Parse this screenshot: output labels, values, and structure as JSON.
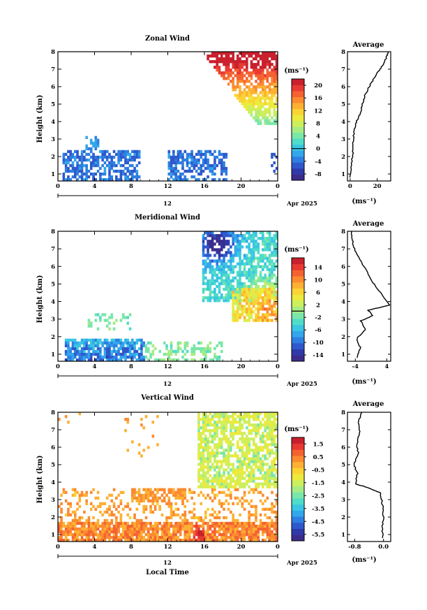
{
  "panels": [
    {
      "title": "Zonal Wind",
      "date_label": "Apr 2025",
      "ylabel": "Height (km)",
      "units": "(ms⁻¹)",
      "colorbar": {
        "ticks": [
          "20",
          "16",
          "12",
          "8",
          "4",
          "0",
          "-4",
          "-8"
        ],
        "values": [
          20,
          16,
          12,
          8,
          4,
          0,
          -4,
          -8
        ],
        "range": [
          -10,
          22
        ],
        "zero_line": 0
      },
      "profile": {
        "title": "Average",
        "xticks": [
          "0",
          "20"
        ],
        "xvalues": [
          0,
          20
        ],
        "xlim": [
          -2,
          30
        ],
        "xunits": "(ms⁻¹)"
      }
    },
    {
      "title": "Meridional Wind",
      "date_label": "Apr 2025",
      "ylabel": "Height (km)",
      "units": "(ms⁻¹)",
      "colorbar": {
        "ticks": [
          "14",
          "10",
          "6",
          "2",
          "-2",
          "-6",
          "-10",
          "-14"
        ],
        "values": [
          14,
          10,
          6,
          2,
          -2,
          -6,
          -10,
          -14
        ],
        "range": [
          -16,
          17
        ],
        "zero_line": 0
      },
      "profile": {
        "title": "Average",
        "xticks": [
          "-4",
          "4"
        ],
        "xvalues": [
          -4,
          4
        ],
        "xlim": [
          -6,
          5
        ],
        "xunits": "(ms⁻¹)"
      }
    },
    {
      "title": "Vertical Wind",
      "date_label": "Apr 2025",
      "ylabel": "Height (km)",
      "units": "(ms⁻¹)",
      "colorbar": {
        "ticks": [
          "1.5",
          "0.5",
          "-0.5",
          "-1.5",
          "-2.5",
          "-3.5",
          "-4.5",
          "-5.5"
        ],
        "values": [
          1.5,
          0.5,
          -0.5,
          -1.5,
          -2.5,
          -3.5,
          -4.5,
          -5.5
        ],
        "range": [
          -6,
          2
        ],
        "zero_line": null
      },
      "profile": {
        "title": "Average",
        "xticks": [
          "-0.8",
          "0.0"
        ],
        "xvalues": [
          -0.8,
          0.0
        ],
        "xlim": [
          -1.0,
          0.2
        ],
        "xunits": "(ms⁻¹)"
      }
    }
  ],
  "common": {
    "xticks": [
      "0",
      "4",
      "8",
      "12",
      "16",
      "20",
      "0"
    ],
    "xtick_hours": [
      0,
      4,
      8,
      12,
      16,
      20,
      24
    ],
    "yticks": [
      "1",
      "2",
      "3",
      "4",
      "5",
      "6",
      "7",
      "8"
    ],
    "ytick_km": [
      1,
      2,
      3,
      4,
      5,
      6,
      7,
      8
    ],
    "day_label": "12",
    "xlabel": "Local Time",
    "colormap": [
      "#3b2c8c",
      "#2f3aa8",
      "#2f58cc",
      "#2e7fe0",
      "#33a6ec",
      "#39c6e3",
      "#4fdcc8",
      "#7ae6a8",
      "#a6ec85",
      "#ccef5e",
      "#ecea3c",
      "#fbd334",
      "#fdb033",
      "#fb8a30",
      "#f56231",
      "#e83a32",
      "#c9202d"
    ]
  },
  "chart_data": [
    {
      "type": "heatmap",
      "title": "Zonal Wind",
      "x_label": "Local Time",
      "x_range_hours": [
        0,
        24
      ],
      "y_label": "Height (km)",
      "y_range_km": [
        0.6,
        8
      ],
      "color_scale": {
        "min": -8,
        "max": 20,
        "ticks": [
          20,
          16,
          12,
          8,
          4,
          0,
          -4,
          -8
        ]
      },
      "features": "Weak easterly (negative, blue) winds below 2.5 km during 0-8 h and 12-18 h; strong westerly (red, >20 m/s) winds above 6 km after 16 h decreasing downward through yellow/cyan to ~4 km.",
      "profile": {
        "title": "Average",
        "x": [
          0,
          1,
          2,
          2,
          3,
          4,
          6,
          8,
          9,
          11,
          14,
          17,
          20,
          24,
          27,
          28
        ],
        "height_km": [
          0.8,
          1.5,
          2.2,
          2.8,
          3.4,
          3.9,
          4.2,
          4.6,
          5.0,
          5.5,
          6.0,
          6.4,
          6.8,
          7.2,
          7.7,
          8.0
        ],
        "xlabel": "(ms⁻¹)"
      }
    },
    {
      "type": "heatmap",
      "title": "Meridional Wind",
      "x_label": "Local Time",
      "x_range_hours": [
        0,
        24
      ],
      "y_label": "Height (km)",
      "y_range_km": [
        0.6,
        8
      ],
      "color_scale": {
        "min": -14,
        "max": 14,
        "ticks": [
          14,
          10,
          6,
          2,
          -2,
          -6,
          -10,
          -14
        ]
      },
      "features": "Northerly (blue) winds below 1.5 km during 1-9 h; southerly (yellow-orange) winds 3-5 km after 18 h; strong northerly (dark blue) winds above 6.5 km at 16-19 h.",
      "profile": {
        "title": "Average",
        "x": [
          -3.5,
          -2.8,
          -3.6,
          -1.5,
          -2.6,
          0.5,
          -0.8,
          4.8,
          2.5,
          0.0,
          -1.5,
          -3.2,
          -4.2,
          -4.8,
          -5.0
        ],
        "height_km": [
          0.8,
          1.4,
          1.9,
          2.4,
          2.9,
          3.2,
          3.5,
          3.8,
          4.5,
          5.2,
          5.9,
          6.5,
          7.0,
          7.5,
          8.0
        ],
        "xlabel": "(ms⁻¹)"
      }
    },
    {
      "type": "heatmap",
      "title": "Vertical Wind",
      "x_label": "Local Time",
      "x_range_hours": [
        0,
        24
      ],
      "y_label": "Height (km)",
      "y_range_km": [
        0.6,
        8
      ],
      "color_scale": {
        "min": -5.5,
        "max": 1.5,
        "ticks": [
          1.5,
          0.5,
          -0.5,
          -1.5,
          -2.5,
          -3.5,
          -4.5,
          -5.5
        ]
      },
      "features": "Near-zero to slightly positive (yellow/orange) below 3.5 km; red updraft (>1.5 m/s) near 15 h at 1 km; light green (about -1 m/s) above 4 km after 15.5 h.",
      "profile": {
        "title": "Average",
        "x": [
          -0.02,
          -0.03,
          0.0,
          -0.02,
          -0.05,
          -0.1,
          -0.45,
          -0.78,
          -0.72,
          -0.82,
          -0.7,
          -0.74,
          -0.66,
          -0.7,
          -0.6
        ],
        "height_km": [
          0.8,
          1.4,
          2.0,
          2.6,
          3.0,
          3.4,
          3.7,
          3.9,
          4.5,
          5.0,
          5.6,
          6.2,
          6.8,
          7.4,
          8.0
        ],
        "xlabel": "(ms⁻¹)"
      }
    }
  ]
}
